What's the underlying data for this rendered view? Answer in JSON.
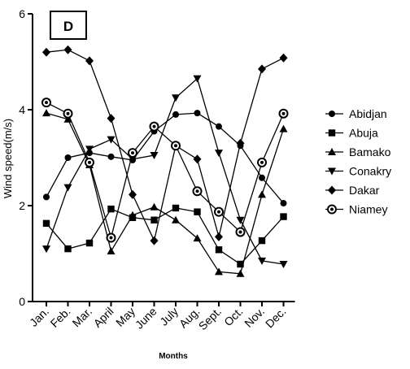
{
  "chart_data": {
    "type": "line",
    "panel_label": "D",
    "xlabel": "Months",
    "ylabel": "Wind speed(m/s)",
    "ylim": [
      0,
      6
    ],
    "yticks": [
      0,
      2,
      4,
      6
    ],
    "categories": [
      "Jan.",
      "Feb.",
      "Mar.",
      "April",
      "May",
      "June",
      "July",
      "Aug.",
      "Sept.",
      "Oct.",
      "Nov.",
      "Dec."
    ],
    "grid": false,
    "legend_position": "right",
    "series": [
      {
        "name": "Abidjan",
        "marker": "circle",
        "values": [
          2.18,
          3.0,
          3.1,
          3.02,
          2.95,
          3.55,
          3.9,
          3.93,
          3.65,
          3.25,
          2.58,
          2.05
        ]
      },
      {
        "name": "Abuja",
        "marker": "square",
        "values": [
          1.63,
          1.1,
          1.22,
          1.93,
          1.75,
          1.7,
          1.95,
          1.87,
          1.08,
          0.78,
          1.27,
          1.77
        ]
      },
      {
        "name": "Bamako",
        "marker": "triangle-up",
        "values": [
          3.93,
          3.8,
          2.85,
          1.05,
          1.8,
          1.97,
          1.7,
          1.32,
          0.62,
          0.58,
          2.23,
          3.6
        ]
      },
      {
        "name": "Conakry",
        "marker": "triangle-down",
        "values": [
          1.1,
          2.38,
          3.18,
          3.38,
          2.97,
          3.05,
          4.25,
          4.65,
          3.1,
          1.7,
          0.85,
          0.78
        ]
      },
      {
        "name": "Dakar",
        "marker": "diamond",
        "values": [
          5.2,
          5.25,
          5.02,
          3.82,
          2.23,
          1.27,
          3.25,
          2.97,
          1.35,
          3.3,
          4.85,
          5.08
        ]
      },
      {
        "name": "Niamey",
        "marker": "ring",
        "values": [
          4.15,
          3.92,
          2.9,
          1.33,
          3.1,
          3.65,
          3.25,
          2.3,
          1.87,
          1.45,
          2.9,
          3.92
        ]
      }
    ]
  }
}
